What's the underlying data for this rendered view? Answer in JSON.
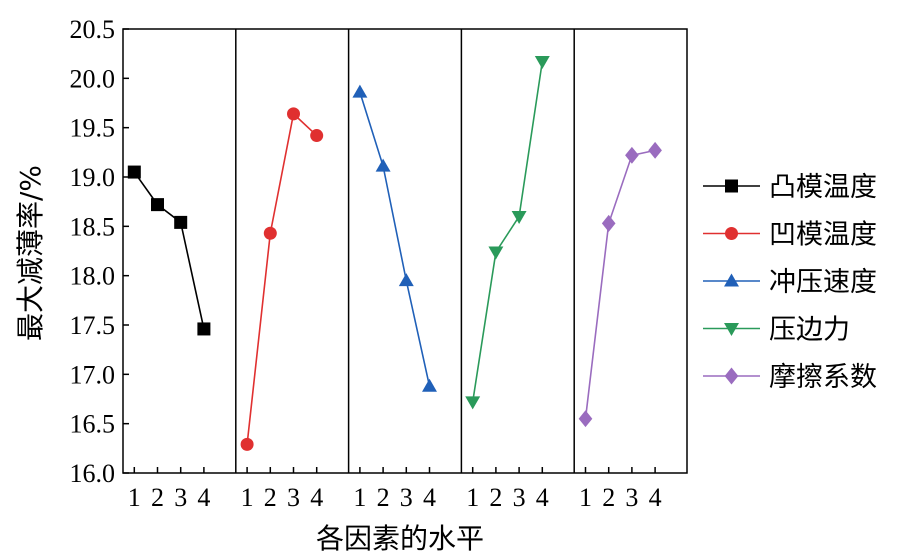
{
  "chart_data": {
    "type": "line",
    "ylabel": "最大减薄率/%",
    "xlabel": "各因素的水平",
    "ylim": [
      16.0,
      20.5
    ],
    "yticks": [
      16.0,
      16.5,
      17.0,
      17.5,
      18.0,
      18.5,
      19.0,
      19.5,
      20.0,
      20.5
    ],
    "ytick_labels": [
      "16.0",
      "16.5",
      "17.0",
      "17.5",
      "18.0",
      "18.5",
      "19.0",
      "19.5",
      "20.0",
      "20.5"
    ],
    "x": [
      1,
      2,
      3,
      4
    ],
    "xtick_labels": [
      "1",
      "2",
      "3",
      "4"
    ],
    "grid": false,
    "legend_position": "right",
    "series": [
      {
        "name": "凸模温度",
        "values": [
          19.05,
          18.72,
          18.54,
          17.46
        ],
        "color": "#000000",
        "marker": "square"
      },
      {
        "name": "凹模温度",
        "values": [
          16.29,
          18.43,
          19.64,
          19.42
        ],
        "color": "#e03030",
        "marker": "circle"
      },
      {
        "name": "冲压速度",
        "values": [
          19.86,
          19.11,
          17.95,
          16.88
        ],
        "color": "#2060b8",
        "marker": "triangle-up"
      },
      {
        "name": "压边力",
        "values": [
          16.72,
          18.24,
          18.6,
          20.17
        ],
        "color": "#2a9a5a",
        "marker": "triangle-down"
      },
      {
        "name": "摩擦系数",
        "values": [
          16.55,
          18.53,
          19.22,
          19.27
        ],
        "color": "#9a6cbf",
        "marker": "diamond"
      }
    ]
  }
}
